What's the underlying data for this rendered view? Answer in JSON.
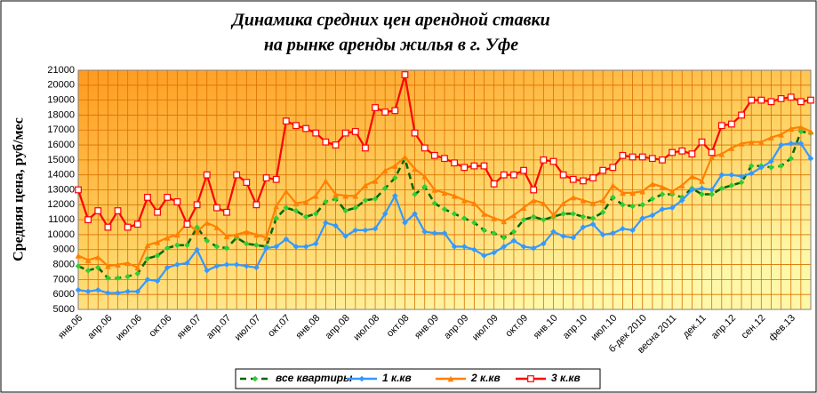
{
  "chart_data": {
    "type": "line",
    "title": [
      "Динамика средних цен арендной ставки",
      "на рынке аренды жилья в г. Уфе"
    ],
    "y_label": "Средняя цена, руб/мес",
    "categories": [
      "янв.06",
      null,
      null,
      "апр.06",
      null,
      null,
      "июл.06",
      null,
      null,
      "окт.06",
      null,
      null,
      "янв.07",
      null,
      null,
      "апр.07",
      null,
      null,
      "июл.07",
      null,
      null,
      "окт.07",
      null,
      null,
      "янв.08",
      null,
      null,
      "апр.08",
      null,
      null,
      "июл.08",
      null,
      null,
      "окт.08",
      null,
      null,
      "янв.09",
      null,
      null,
      "апр.09",
      null,
      null,
      "июл.09",
      null,
      null,
      "окт.09",
      null,
      null,
      "янв.10",
      null,
      null,
      "апр.10",
      null,
      null,
      "июл.10",
      null,
      null,
      "б-дек 2010",
      null,
      null,
      "весна 2011",
      null,
      null,
      "дек.11",
      null,
      null,
      "апр.12",
      null,
      null,
      "сен.12",
      null,
      null,
      "фев.13",
      null,
      null
    ],
    "series": [
      {
        "name": "все квартиры",
        "color": "#33cc33",
        "line_color": "#006600",
        "dashed": true,
        "marker": "diamond",
        "values": [
          7900,
          7600,
          7800,
          7100,
          7100,
          7200,
          7400,
          8400,
          8600,
          9100,
          9300,
          9300,
          10500,
          9600,
          9200,
          9100,
          9800,
          9400,
          9300,
          9200,
          11100,
          11800,
          11600,
          11200,
          11400,
          12200,
          12400,
          11600,
          11800,
          12300,
          12400,
          13100,
          13800,
          15100,
          12700,
          13200,
          12100,
          11700,
          11400,
          11100,
          10800,
          10300,
          10100,
          9800,
          10200,
          11000,
          11200,
          11000,
          11200,
          11400,
          11400,
          11200,
          11100,
          11500,
          12500,
          12000,
          11900,
          12000,
          12400,
          12700,
          12700,
          12500,
          13100,
          12700,
          12700,
          13100,
          13300,
          13500,
          14600,
          14600,
          14500,
          14600,
          15100,
          16900,
          16800
        ]
      },
      {
        "name": "1 к.кв",
        "color": "#3399ff",
        "line_color": "#3399ff",
        "dashed": false,
        "marker": "diamond",
        "values": [
          6300,
          6200,
          6300,
          6100,
          6100,
          6200,
          6200,
          7000,
          6900,
          7800,
          8000,
          8100,
          9000,
          7600,
          7900,
          8000,
          8000,
          7900,
          7800,
          9100,
          9200,
          9700,
          9200,
          9200,
          9400,
          10800,
          10600,
          9900,
          10300,
          10300,
          10400,
          11400,
          12600,
          10800,
          11400,
          10200,
          10100,
          10100,
          9200,
          9200,
          9000,
          8600,
          8800,
          9200,
          9600,
          9200,
          9100,
          9400,
          10200,
          9900,
          9800,
          10500,
          10700,
          10000,
          10100,
          10400,
          10300,
          11100,
          11300,
          11700,
          11800,
          12300,
          13000,
          13100,
          13000,
          14000,
          14000,
          13900,
          14100,
          14500,
          14900,
          16000,
          16100,
          16100,
          15100
        ]
      },
      {
        "name": "2 к.кв",
        "color": "#ff8000",
        "line_color": "#ff8000",
        "dashed": false,
        "marker": "triangle",
        "values": [
          8600,
          8300,
          8500,
          7900,
          8000,
          8100,
          7800,
          9300,
          9500,
          9800,
          10000,
          10800,
          10200,
          10800,
          10500,
          9900,
          10000,
          10200,
          10000,
          9800,
          11900,
          12900,
          12100,
          12200,
          12600,
          13600,
          12700,
          12600,
          12600,
          13300,
          13600,
          14300,
          14600,
          15200,
          14400,
          13900,
          13000,
          12800,
          12600,
          12300,
          12100,
          11400,
          11100,
          10900,
          11300,
          11800,
          12300,
          12100,
          11300,
          12100,
          12500,
          12300,
          12100,
          12300,
          13300,
          12800,
          12800,
          12900,
          13400,
          13200,
          12900,
          13300,
          13900,
          13600,
          15200,
          15400,
          15800,
          16100,
          16200,
          16200,
          16500,
          16700,
          17100,
          17200,
          16900
        ]
      },
      {
        "name": "3 к.кв",
        "color": "#ff0000",
        "line_color": "#ff0000",
        "dashed": false,
        "marker": "square",
        "values": [
          13000,
          11000,
          11600,
          10500,
          11600,
          10500,
          10700,
          12500,
          11500,
          12500,
          12200,
          10700,
          12000,
          14000,
          11800,
          11500,
          14000,
          13500,
          12000,
          13800,
          13700,
          17600,
          17300,
          17100,
          16800,
          16200,
          16000,
          16800,
          16900,
          15800,
          18500,
          18200,
          18300,
          20700,
          16800,
          15800,
          15300,
          15100,
          14800,
          14500,
          14600,
          14600,
          13400,
          14000,
          14000,
          14300,
          13000,
          15000,
          14900,
          14000,
          13700,
          13600,
          13800,
          14300,
          14500,
          15300,
          15200,
          15200,
          15100,
          15000,
          15500,
          15600,
          15400,
          16200,
          15500,
          17300,
          17400,
          18000,
          19000,
          19000,
          18900,
          19100,
          19200,
          18900,
          19000
        ]
      }
    ],
    "ylim": [
      5000,
      21000
    ],
    "yticks": [
      5000,
      6000,
      7000,
      8000,
      9000,
      10000,
      11000,
      12000,
      13000,
      14000,
      15000,
      16000,
      17000,
      18000,
      19000,
      20000,
      21000
    ],
    "grid": true
  }
}
